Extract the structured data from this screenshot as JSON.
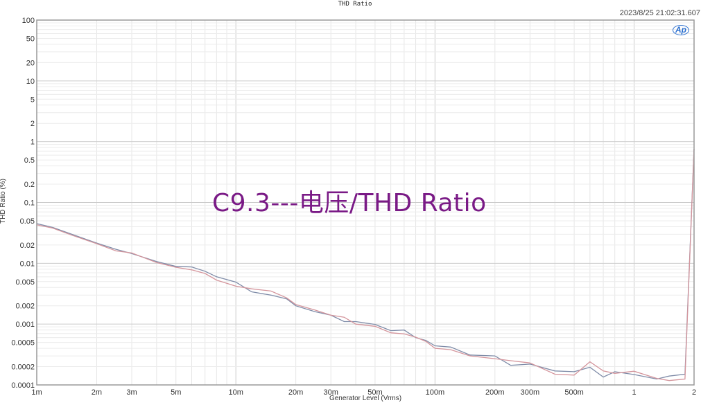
{
  "chart_data": {
    "type": "line",
    "title": "THD Ratio",
    "timestamp": "2023/8/25 21:02:31.607",
    "annotation": "C9.3---电压/THD Ratio",
    "logo": "Ap",
    "xlabel": "Generator Level (Vrms)",
    "ylabel": "THD Ratio (%)",
    "xscale": "log",
    "yscale": "log",
    "xlim": [
      0.001,
      2
    ],
    "ylim": [
      0.0001,
      100
    ],
    "grid": true,
    "xticks": [
      {
        "v": 0.001,
        "label": "1m"
      },
      {
        "v": 0.002,
        "label": "2m"
      },
      {
        "v": 0.003,
        "label": "3m"
      },
      {
        "v": 0.005,
        "label": "5m"
      },
      {
        "v": 0.01,
        "label": "10m"
      },
      {
        "v": 0.02,
        "label": "20m"
      },
      {
        "v": 0.03,
        "label": "30m"
      },
      {
        "v": 0.05,
        "label": "50m"
      },
      {
        "v": 0.1,
        "label": "100m"
      },
      {
        "v": 0.2,
        "label": "200m"
      },
      {
        "v": 0.3,
        "label": "300m"
      },
      {
        "v": 0.5,
        "label": "500m"
      },
      {
        "v": 1,
        "label": "1"
      },
      {
        "v": 2,
        "label": "2"
      }
    ],
    "yticks": [
      {
        "v": 100,
        "label": "100"
      },
      {
        "v": 50,
        "label": "50"
      },
      {
        "v": 20,
        "label": "20"
      },
      {
        "v": 10,
        "label": "10"
      },
      {
        "v": 5,
        "label": "5"
      },
      {
        "v": 2,
        "label": "2"
      },
      {
        "v": 1,
        "label": "1"
      },
      {
        "v": 0.5,
        "label": "0.5"
      },
      {
        "v": 0.2,
        "label": "0.2"
      },
      {
        "v": 0.1,
        "label": "0.1"
      },
      {
        "v": 0.05,
        "label": "0.05"
      },
      {
        "v": 0.02,
        "label": "0.02"
      },
      {
        "v": 0.01,
        "label": "0.01"
      },
      {
        "v": 0.005,
        "label": "0.005"
      },
      {
        "v": 0.002,
        "label": "0.002"
      },
      {
        "v": 0.001,
        "label": "0.001"
      },
      {
        "v": 0.0005,
        "label": "0.0005"
      },
      {
        "v": 0.0002,
        "label": "0.0002"
      },
      {
        "v": 0.0001,
        "label": "0.0001"
      }
    ],
    "x": [
      0.001,
      0.0012,
      0.0015,
      0.002,
      0.0025,
      0.003,
      0.004,
      0.005,
      0.006,
      0.007,
      0.008,
      0.01,
      0.012,
      0.015,
      0.018,
      0.02,
      0.025,
      0.03,
      0.035,
      0.04,
      0.05,
      0.06,
      0.07,
      0.08,
      0.09,
      0.1,
      0.12,
      0.15,
      0.2,
      0.24,
      0.3,
      0.4,
      0.5,
      0.6,
      0.7,
      0.8,
      1,
      1.3,
      1.5,
      1.8,
      2
    ],
    "series": [
      {
        "color": "#7f8ca8",
        "values": [
          0.045,
          0.039,
          0.03,
          0.0215,
          0.017,
          0.0145,
          0.0107,
          0.0089,
          0.0087,
          0.0074,
          0.006,
          0.0049,
          0.0034,
          0.003,
          0.0026,
          0.002,
          0.0016,
          0.0014,
          0.0011,
          0.0011,
          0.00099,
          0.00078,
          0.0008,
          0.0006,
          0.00054,
          0.00044,
          0.00042,
          0.00031,
          0.0003,
          0.00021,
          0.00022,
          0.00017,
          0.000165,
          0.000195,
          0.000135,
          0.000165,
          0.000148,
          0.000125,
          0.00014,
          0.00015,
          0.76
        ]
      },
      {
        "color": "#d4959c",
        "values": [
          0.043,
          0.038,
          0.029,
          0.021,
          0.016,
          0.0148,
          0.0103,
          0.0086,
          0.0078,
          0.0068,
          0.0053,
          0.0042,
          0.0038,
          0.0035,
          0.0027,
          0.0021,
          0.0017,
          0.0014,
          0.0013,
          0.001,
          0.00092,
          0.00072,
          0.00069,
          0.00061,
          0.00052,
          0.0004,
          0.00038,
          0.0003,
          0.00027,
          0.00025,
          0.00023,
          0.00015,
          0.000145,
          0.00024,
          0.00017,
          0.000155,
          0.000168,
          0.000128,
          0.000118,
          0.000125,
          0.76
        ]
      }
    ]
  }
}
